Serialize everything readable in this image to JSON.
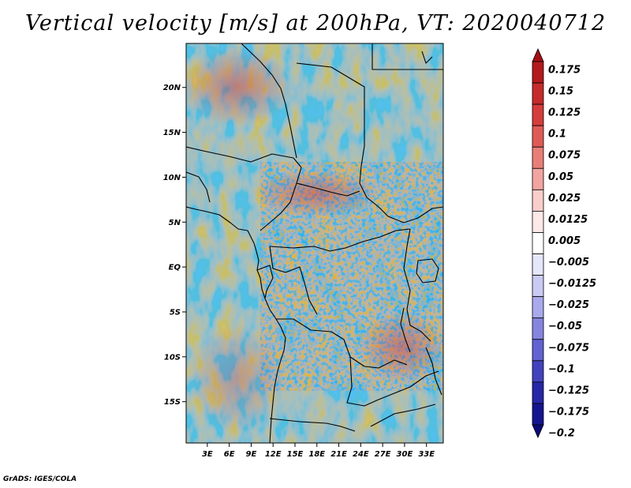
{
  "title": "Vertical velocity [m/s] at 200hPa, VT: 2020040712",
  "credit": "GrADS: IGES/COLA",
  "map": {
    "variable": "Vertical velocity",
    "units": "m/s",
    "level": "200hPa",
    "valid_time": "2020040712",
    "lat_labels": [
      "20N",
      "15N",
      "10N",
      "5N",
      "EQ",
      "5S",
      "10S",
      "15S"
    ],
    "lat_values": [
      20,
      15,
      10,
      5,
      0,
      -5,
      -10,
      -15
    ],
    "lon_labels": [
      "3E",
      "6E",
      "9E",
      "12E",
      "15E",
      "18E",
      "21E",
      "24E",
      "27E",
      "30E",
      "33E"
    ],
    "lon_values": [
      3,
      6,
      9,
      12,
      15,
      18,
      21,
      24,
      27,
      30,
      33
    ],
    "lat_range": [
      -19.6,
      24.9
    ],
    "lon_range": [
      0.1,
      35.3
    ]
  },
  "colorbar": {
    "labels": [
      "0.175",
      "0.15",
      "0.125",
      "0.1",
      "0.075",
      "0.05",
      "0.025",
      "0.0125",
      "0.005",
      "−0.005",
      "−0.0125",
      "−0.025",
      "−0.05",
      "−0.075",
      "−0.1",
      "−0.125",
      "−0.175",
      "−0.2"
    ],
    "colors": [
      "#a50f15",
      "#b4191c",
      "#c62b2b",
      "#d43d3c",
      "#e05a55",
      "#e97e78",
      "#f2a5a0",
      "#f9cdca",
      "#fde9e7",
      "#ffffff",
      "#e6e6fb",
      "#cacaf4",
      "#a9a9ec",
      "#8585e0",
      "#6262d2",
      "#4242bf",
      "#2626a8",
      "#141490",
      "#0a0a78"
    ]
  }
}
